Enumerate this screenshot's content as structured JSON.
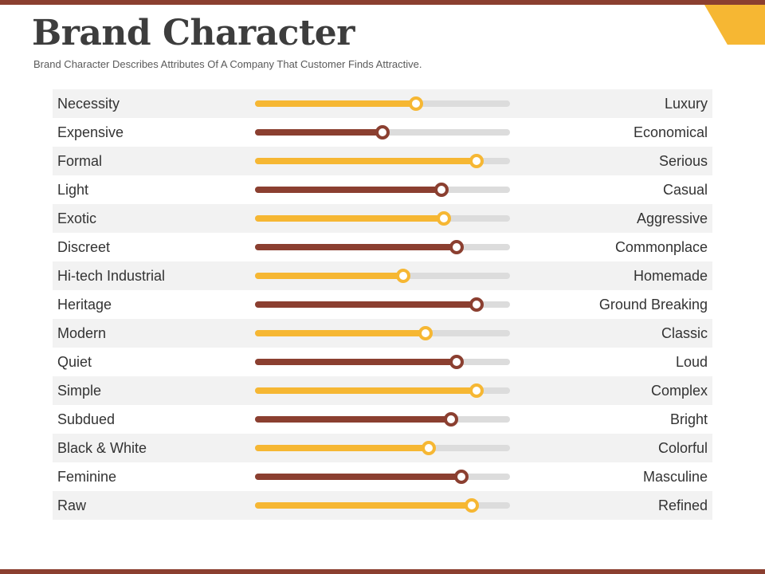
{
  "slide": {
    "title": "Brand Character",
    "subtitle": "Brand Character Describes Attributes Of A Company That Customer Finds Attractive."
  },
  "colors": {
    "gold": "#f6b733",
    "brown": "#8b3f30",
    "track": "#dcdcdc"
  },
  "rows": [
    {
      "left": "Necessity",
      "right": "Luxury",
      "value": 0.63,
      "color": "gold"
    },
    {
      "left": "Expensive",
      "right": "Economical",
      "value": 0.5,
      "color": "brown"
    },
    {
      "left": "Formal",
      "right": "Serious",
      "value": 0.87,
      "color": "gold"
    },
    {
      "left": "Light",
      "right": "Casual",
      "value": 0.73,
      "color": "brown"
    },
    {
      "left": "Exotic",
      "right": "Aggressive",
      "value": 0.74,
      "color": "gold"
    },
    {
      "left": "Discreet",
      "right": "Commonplace",
      "value": 0.79,
      "color": "brown"
    },
    {
      "left": "Hi-tech Industrial",
      "right": "Homemade",
      "value": 0.58,
      "color": "gold"
    },
    {
      "left": "Heritage",
      "right": "Ground Breaking",
      "value": 0.87,
      "color": "brown"
    },
    {
      "left": "Modern",
      "right": "Classic",
      "value": 0.67,
      "color": "gold"
    },
    {
      "left": "Quiet",
      "right": "Loud",
      "value": 0.79,
      "color": "brown"
    },
    {
      "left": "Simple",
      "right": "Complex",
      "value": 0.87,
      "color": "gold"
    },
    {
      "left": "Subdued",
      "right": "Bright",
      "value": 0.77,
      "color": "brown"
    },
    {
      "left": "Black & White",
      "right": "Colorful",
      "value": 0.68,
      "color": "gold"
    },
    {
      "left": "Feminine",
      "right": "Masculine",
      "value": 0.81,
      "color": "brown"
    },
    {
      "left": "Raw",
      "right": "Refined",
      "value": 0.85,
      "color": "gold"
    }
  ]
}
